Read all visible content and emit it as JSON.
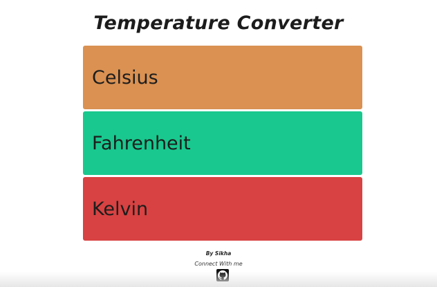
{
  "app": {
    "title": "Temperature Converter"
  },
  "colors": {
    "celsius": "#da9152",
    "fahrenheit": "#19c88e",
    "kelvin": "#d84242"
  },
  "fields": {
    "celsius": {
      "placeholder": "Celsius",
      "value": ""
    },
    "fahrenheit": {
      "placeholder": "Fahrenheit",
      "value": ""
    },
    "kelvin": {
      "placeholder": "Kelvin",
      "value": ""
    }
  },
  "footer": {
    "by": "By Sikha",
    "connect": "Connect With me",
    "icon": "github-icon"
  }
}
